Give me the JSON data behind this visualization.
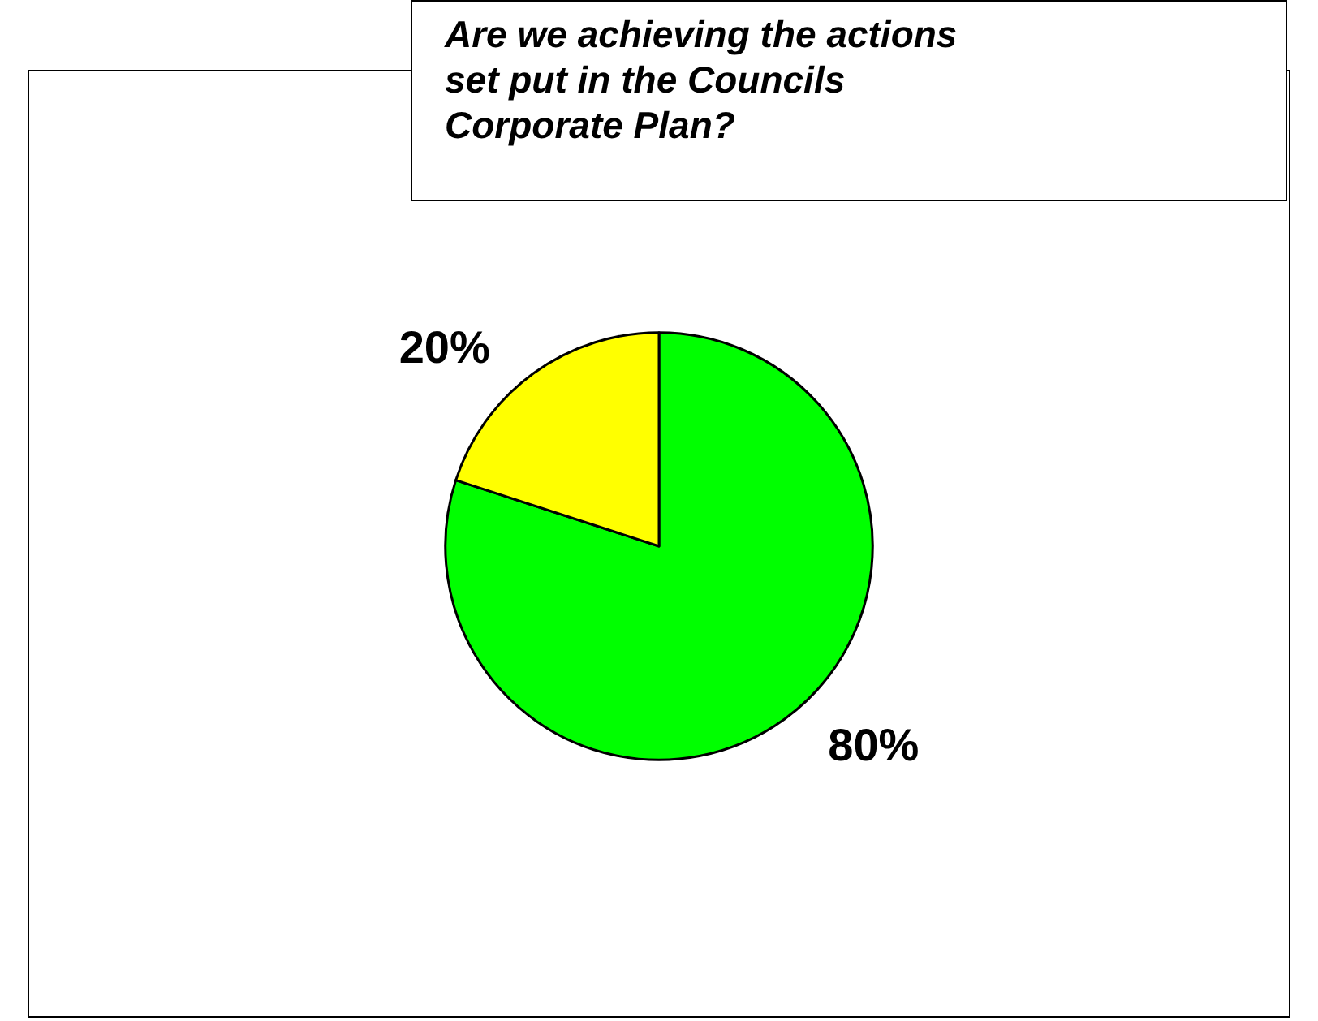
{
  "chart_data": {
    "type": "pie",
    "title": "Are we achieving the actions set put in the Councils Corporate Plan?",
    "categories": [
      null,
      null
    ],
    "values": [
      80,
      20
    ],
    "colors": [
      "#00ff00",
      "#ffff00"
    ],
    "value_labels": [
      "80%",
      "20%"
    ]
  }
}
